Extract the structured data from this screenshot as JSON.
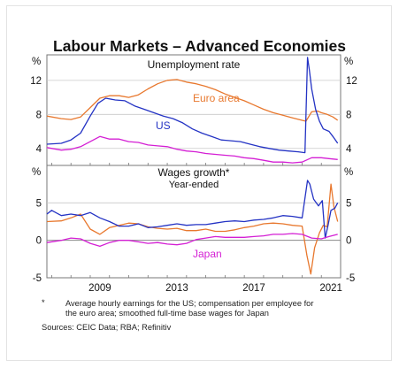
{
  "title": "Labour Markets – Advanced Economies",
  "footnote": {
    "marker": "*",
    "lines": [
      "Average hourly earnings for the US; compensation per employee for",
      "the euro area; smoothed full-time base wages for Japan"
    ],
    "sources": "Sources:  CEIC Data; RBA; Refinitiv"
  },
  "chart_data": [
    {
      "type": "line",
      "title": "Unemployment rate",
      "ylabel": "%",
      "ylim": [
        2,
        15
      ],
      "yticks": [
        "4",
        "8",
        "12"
      ],
      "xlim": [
        2006.75,
        2022.0
      ],
      "xticks": [
        "2009",
        "2013",
        "2017",
        "2021"
      ],
      "grid": true,
      "series": [
        {
          "name": "Euro area",
          "color": "#e8782e",
          "x": [
            2006.75,
            2007.5,
            2008.0,
            2008.5,
            2009.0,
            2009.5,
            2010.0,
            2010.5,
            2011.0,
            2011.5,
            2012.0,
            2012.5,
            2013.0,
            2013.5,
            2014.0,
            2014.5,
            2015.0,
            2015.5,
            2016.0,
            2016.5,
            2017.0,
            2017.5,
            2018.0,
            2018.5,
            2019.0,
            2019.5,
            2020.0,
            2020.2,
            2020.5,
            2020.8,
            2021.0,
            2021.3,
            2021.6,
            2021.85
          ],
          "y": [
            7.8,
            7.5,
            7.4,
            7.7,
            8.8,
            9.9,
            10.2,
            10.2,
            10.0,
            10.3,
            11.0,
            11.6,
            12.0,
            12.1,
            11.8,
            11.6,
            11.3,
            10.9,
            10.4,
            10.0,
            9.6,
            9.1,
            8.6,
            8.2,
            7.9,
            7.6,
            7.3,
            7.2,
            8.3,
            8.4,
            8.2,
            8.0,
            7.7,
            7.3
          ]
        },
        {
          "name": "US",
          "color": "#2433c4",
          "x": [
            2006.75,
            2007.5,
            2008.0,
            2008.5,
            2009.0,
            2009.4,
            2009.8,
            2010.3,
            2010.8,
            2011.3,
            2011.8,
            2012.3,
            2012.8,
            2013.3,
            2013.8,
            2014.3,
            2014.8,
            2015.3,
            2015.8,
            2016.3,
            2016.8,
            2017.3,
            2017.8,
            2018.3,
            2018.8,
            2019.3,
            2019.8,
            2020.15,
            2020.28,
            2020.38,
            2020.5,
            2020.7,
            2020.9,
            2021.1,
            2021.4,
            2021.6,
            2021.85
          ],
          "y": [
            4.5,
            4.6,
            5.0,
            5.8,
            7.8,
            9.3,
            9.9,
            9.7,
            9.6,
            9.0,
            8.6,
            8.2,
            7.8,
            7.5,
            7.0,
            6.3,
            5.8,
            5.4,
            5.0,
            4.9,
            4.8,
            4.5,
            4.2,
            4.0,
            3.8,
            3.7,
            3.6,
            3.5,
            14.7,
            13.2,
            11.0,
            8.6,
            7.2,
            6.3,
            6.0,
            5.4,
            4.6
          ]
        },
        {
          "name": "Japan",
          "color": "#d41fd4",
          "x": [
            2006.75,
            2007.5,
            2008.0,
            2008.5,
            2009.0,
            2009.5,
            2010.0,
            2010.5,
            2011.0,
            2011.5,
            2012.0,
            2012.5,
            2013.0,
            2013.5,
            2014.0,
            2014.5,
            2015.0,
            2015.5,
            2016.0,
            2016.5,
            2017.0,
            2017.5,
            2018.0,
            2018.5,
            2019.0,
            2019.5,
            2020.0,
            2020.5,
            2021.0,
            2021.4,
            2021.85
          ],
          "y": [
            4.1,
            3.8,
            3.9,
            4.2,
            4.8,
            5.4,
            5.1,
            5.1,
            4.8,
            4.7,
            4.4,
            4.3,
            4.2,
            3.9,
            3.7,
            3.6,
            3.4,
            3.3,
            3.2,
            3.1,
            2.9,
            2.8,
            2.6,
            2.4,
            2.4,
            2.3,
            2.4,
            2.9,
            2.9,
            2.8,
            2.7
          ]
        }
      ]
    },
    {
      "type": "line",
      "title": "Wages growth*",
      "subtitle": "Year-ended",
      "ylabel": "%",
      "ylim": [
        -5,
        10
      ],
      "yticks": [
        "-5",
        "0",
        "5"
      ],
      "xlim": [
        2006.75,
        2022.0
      ],
      "xticks": [
        "2009",
        "2013",
        "2017",
        "2021"
      ],
      "grid": true,
      "series": [
        {
          "name": "Euro area",
          "color": "#e8782e",
          "x": [
            2006.75,
            2007.5,
            2008.0,
            2008.5,
            2009.0,
            2009.5,
            2010.0,
            2010.5,
            2011.0,
            2011.5,
            2012.0,
            2012.5,
            2013.0,
            2013.5,
            2014.0,
            2014.5,
            2015.0,
            2015.5,
            2016.0,
            2016.5,
            2017.0,
            2017.5,
            2018.0,
            2018.5,
            2019.0,
            2019.5,
            2020.0,
            2020.25,
            2020.45,
            2020.65,
            2020.9,
            2021.1,
            2021.3,
            2021.5,
            2021.65,
            2021.85
          ],
          "y": [
            2.5,
            2.6,
            3.0,
            3.5,
            1.5,
            0.8,
            1.7,
            2.0,
            2.3,
            2.2,
            1.8,
            1.6,
            1.5,
            1.6,
            1.3,
            1.3,
            1.5,
            1.2,
            1.2,
            1.4,
            1.7,
            1.9,
            2.2,
            2.3,
            2.2,
            2.0,
            1.9,
            -2.0,
            -4.5,
            -1.0,
            1.0,
            2.0,
            1.8,
            7.5,
            4.5,
            2.5
          ]
        },
        {
          "name": "US",
          "color": "#2433c4",
          "x": [
            2006.75,
            2007.0,
            2007.5,
            2008.0,
            2008.5,
            2009.0,
            2009.5,
            2010.0,
            2010.5,
            2011.0,
            2011.5,
            2012.0,
            2012.5,
            2013.0,
            2013.5,
            2014.0,
            2014.5,
            2015.0,
            2015.5,
            2016.0,
            2016.5,
            2017.0,
            2017.5,
            2018.0,
            2018.5,
            2019.0,
            2019.5,
            2020.0,
            2020.28,
            2020.4,
            2020.6,
            2020.85,
            2021.05,
            2021.2,
            2021.35,
            2021.5,
            2021.7,
            2021.85
          ],
          "y": [
            3.5,
            4.0,
            3.3,
            3.5,
            3.3,
            3.7,
            3.0,
            2.5,
            1.9,
            1.9,
            2.2,
            1.7,
            1.8,
            2.0,
            2.2,
            2.0,
            2.1,
            2.1,
            2.3,
            2.5,
            2.6,
            2.5,
            2.7,
            2.8,
            3.0,
            3.3,
            3.2,
            3.0,
            8.0,
            7.5,
            5.5,
            4.6,
            5.3,
            0.3,
            2.0,
            4.0,
            4.3,
            5.0
          ]
        },
        {
          "name": "Japan",
          "color": "#d41fd4",
          "x": [
            2006.75,
            2007.5,
            2008.0,
            2008.5,
            2009.0,
            2009.5,
            2010.0,
            2010.5,
            2011.0,
            2011.5,
            2012.0,
            2012.5,
            2013.0,
            2013.5,
            2014.0,
            2014.5,
            2015.0,
            2015.5,
            2016.0,
            2016.5,
            2017.0,
            2017.5,
            2018.0,
            2018.5,
            2019.0,
            2019.5,
            2020.0,
            2020.5,
            2021.0,
            2021.4,
            2021.85
          ],
          "y": [
            -0.3,
            0.0,
            0.3,
            0.2,
            -0.4,
            -0.8,
            -0.3,
            0.0,
            0.0,
            -0.2,
            -0.4,
            -0.3,
            -0.5,
            -0.6,
            -0.4,
            0.1,
            0.3,
            0.5,
            0.4,
            0.4,
            0.4,
            0.5,
            0.6,
            0.8,
            0.8,
            0.9,
            0.8,
            0.3,
            0.2,
            0.5,
            0.8
          ]
        }
      ]
    }
  ]
}
